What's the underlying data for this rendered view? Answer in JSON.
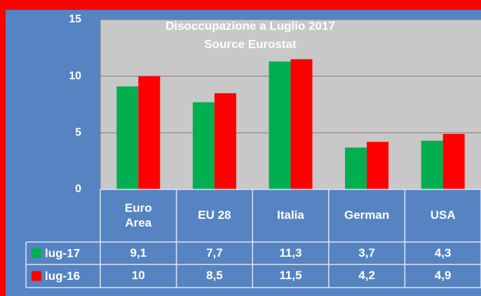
{
  "chart_data": {
    "type": "bar",
    "title": "Disoccupazione a Luglio 2017",
    "subtitle": "Source Eurostat",
    "categories": [
      "Euro Area",
      "EU 28",
      "Italia",
      "German",
      "USA"
    ],
    "series": [
      {
        "name": "lug-17",
        "color": "#00b050",
        "values": [
          9.1,
          7.7,
          11.3,
          3.7,
          4.3
        ],
        "value_labels": [
          "9,1",
          "7,7",
          "11,3",
          "3,7",
          "4,3"
        ]
      },
      {
        "name": "lug-16",
        "color": "#ff0000",
        "values": [
          10,
          8.5,
          11.5,
          4.2,
          4.9
        ],
        "value_labels": [
          "10",
          "8,5",
          "11,5",
          "4,2",
          "4,9"
        ]
      }
    ],
    "ylim": [
      0,
      15
    ],
    "yticks": [
      0,
      5,
      10,
      15
    ],
    "grid": true
  }
}
